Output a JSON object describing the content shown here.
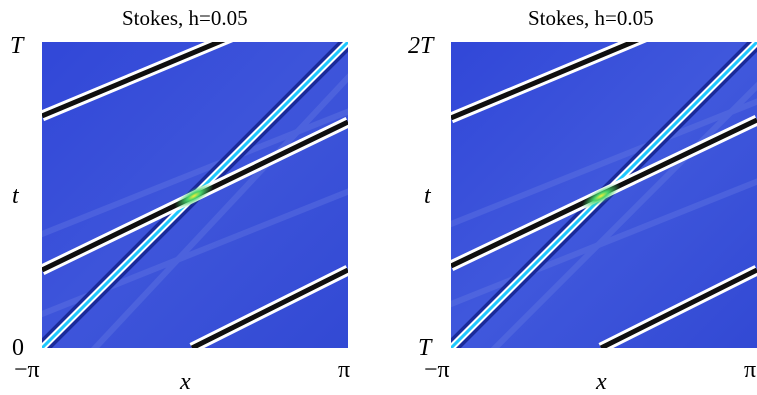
{
  "chart_data": [
    {
      "type": "heatmap",
      "title": "Stokes, h=0.05",
      "xlabel": "x",
      "ylabel": "t",
      "x_ticks": [
        "−π",
        "π"
      ],
      "y_ticks": [
        "0",
        "T"
      ],
      "xlim": [
        "-pi",
        "pi"
      ],
      "ylim": [
        "0",
        "T"
      ],
      "colors": {
        "background": "#3a4fd6",
        "ridge_dark": "#111111",
        "ridge_light": "#1ec8ff",
        "halo": "#ffffff",
        "peak": "#3fcf5a"
      }
    },
    {
      "type": "heatmap",
      "title": "Stokes, h=0.05",
      "xlabel": "x",
      "ylabel": "t",
      "x_ticks": [
        "−π",
        "π"
      ],
      "y_ticks": [
        "T",
        "2T"
      ],
      "xlim": [
        "-pi",
        "pi"
      ],
      "ylim": [
        "T",
        "2T"
      ],
      "colors": {
        "background": "#3a4fd6",
        "ridge_dark": "#111111",
        "ridge_light": "#1ec8ff",
        "halo": "#ffffff",
        "peak": "#3fcf5a"
      }
    }
  ]
}
